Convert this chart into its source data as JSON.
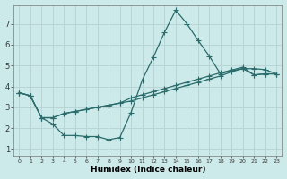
{
  "xlabel": "Humidex (Indice chaleur)",
  "bg_color": "#cdeaea",
  "line_color": "#2a6b6b",
  "grid_color": "#b8d4d4",
  "xlim": [
    -0.5,
    23.5
  ],
  "ylim": [
    0.7,
    7.9
  ],
  "xticks": [
    0,
    1,
    2,
    3,
    4,
    5,
    6,
    7,
    8,
    9,
    10,
    11,
    12,
    13,
    14,
    15,
    16,
    17,
    18,
    19,
    20,
    21,
    22,
    23
  ],
  "yticks": [
    1,
    2,
    3,
    4,
    5,
    6,
    7
  ],
  "line1_x": [
    0,
    1,
    2,
    3,
    4,
    5,
    6,
    7,
    8,
    9,
    10,
    11,
    12,
    13,
    14,
    15,
    16,
    17,
    18,
    19,
    20,
    21,
    22,
    23
  ],
  "line1_y": [
    3.7,
    3.55,
    2.5,
    2.2,
    1.65,
    1.65,
    1.6,
    1.6,
    1.45,
    1.55,
    2.75,
    4.3,
    5.4,
    6.6,
    7.65,
    7.0,
    6.2,
    5.45,
    4.6,
    4.75,
    4.85,
    4.55,
    4.6,
    4.6
  ],
  "line2_x": [
    0,
    1,
    2,
    3,
    4,
    5,
    6,
    7,
    8,
    9,
    10,
    11,
    12,
    13,
    14,
    15,
    16,
    17,
    18,
    19,
    20,
    21,
    22,
    23
  ],
  "line2_y": [
    3.7,
    3.55,
    2.5,
    2.5,
    2.7,
    2.8,
    2.9,
    3.0,
    3.1,
    3.2,
    3.3,
    3.45,
    3.6,
    3.75,
    3.9,
    4.05,
    4.2,
    4.35,
    4.5,
    4.7,
    4.85,
    4.85,
    4.8,
    4.6
  ],
  "line3_x": [
    0,
    1,
    2,
    3,
    4,
    5,
    6,
    7,
    8,
    9,
    10,
    11,
    12,
    13,
    14,
    15,
    16,
    17,
    18,
    19,
    20,
    21,
    22,
    23
  ],
  "line3_y": [
    3.7,
    3.55,
    2.5,
    2.5,
    2.7,
    2.8,
    2.9,
    3.0,
    3.1,
    3.2,
    3.45,
    3.6,
    3.75,
    3.9,
    4.05,
    4.2,
    4.35,
    4.5,
    4.65,
    4.78,
    4.92,
    4.55,
    4.6,
    4.6
  ]
}
